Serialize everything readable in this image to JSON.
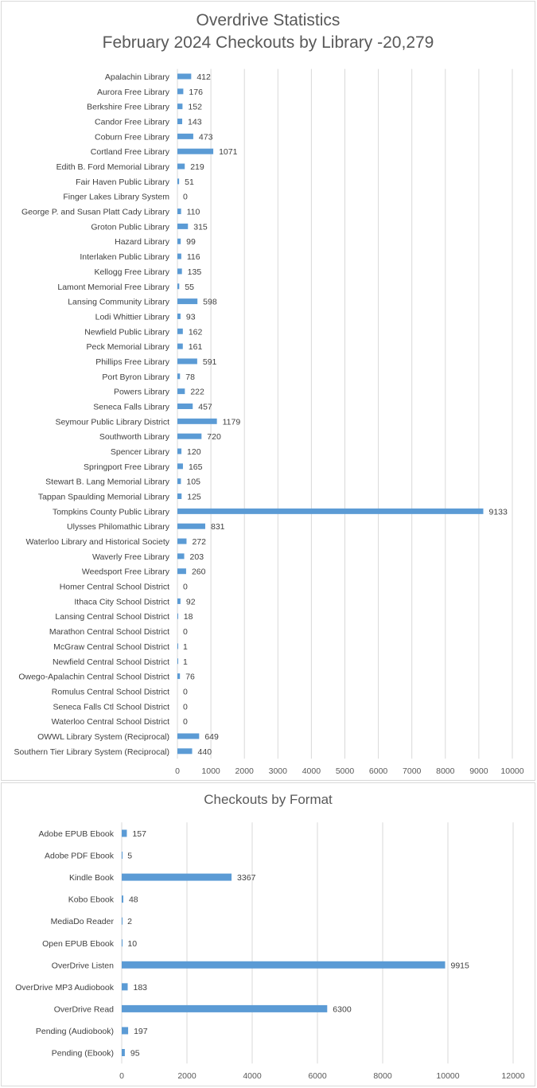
{
  "chart_data": [
    {
      "type": "bar",
      "orientation": "horizontal",
      "title": "Overdrive Statistics",
      "subtitle": "February 2024 Checkouts by Library -20,279",
      "categories": [
        "Apalachin Library",
        "Aurora Free Library",
        "Berkshire Free Library",
        "Candor Free Library",
        "Coburn Free Library",
        "Cortland Free Library",
        "Edith B. Ford Memorial Library",
        "Fair Haven Public Library",
        "Finger Lakes Library System",
        "George P. and Susan Platt Cady Library",
        "Groton Public Library",
        "Hazard Library",
        "Interlaken Public Library",
        "Kellogg Free Library",
        "Lamont Memorial Free Library",
        "Lansing Community Library",
        "Lodi Whittier Library",
        "Newfield Public Library",
        "Peck Memorial Library",
        "Phillips Free Library",
        "Port Byron Library",
        "Powers Library",
        "Seneca Falls Library",
        "Seymour Public Library District",
        "Southworth Library",
        "Spencer Library",
        "Springport Free Library",
        "Stewart B. Lang Memorial Library",
        "Tappan Spaulding Memorial Library",
        "Tompkins County Public Library",
        "Ulysses Philomathic Library",
        "Waterloo Library and Historical Society",
        "Waverly Free Library",
        "Weedsport Free Library",
        "Homer Central School District",
        "Ithaca City School District",
        "Lansing Central School District",
        "Marathon Central School District",
        "McGraw Central School District",
        "Newfield Central School District",
        "Owego-Apalachin Central School District",
        "Romulus Central School District",
        "Seneca Falls Ctl School District",
        "Waterloo Central School District",
        "OWWL Library System (Reciprocal)",
        "Southern Tier Library System (Reciprocal)"
      ],
      "values": [
        412,
        176,
        152,
        143,
        473,
        1071,
        219,
        51,
        0,
        110,
        315,
        99,
        116,
        135,
        55,
        598,
        93,
        162,
        161,
        591,
        78,
        222,
        457,
        1179,
        720,
        120,
        165,
        105,
        125,
        9133,
        831,
        272,
        203,
        260,
        0,
        92,
        18,
        0,
        1,
        1,
        76,
        0,
        0,
        0,
        649,
        440
      ],
      "xlim": [
        0,
        10000
      ],
      "xticks": [
        0,
        1000,
        2000,
        3000,
        4000,
        5000,
        6000,
        7000,
        8000,
        9000,
        10000
      ],
      "grid": true,
      "data_labels": true,
      "bar_color": "#5b9bd5"
    },
    {
      "type": "bar",
      "orientation": "horizontal",
      "title": "Checkouts by Format",
      "categories": [
        "Adobe EPUB Ebook",
        "Adobe PDF Ebook",
        "Kindle Book",
        "Kobo Ebook",
        "MediaDo Reader",
        "Open EPUB Ebook",
        "OverDrive Listen",
        "OverDrive MP3 Audiobook",
        "OverDrive Read",
        "Pending (Audiobook)",
        "Pending (Ebook)"
      ],
      "values": [
        157,
        5,
        3367,
        48,
        2,
        10,
        9915,
        183,
        6300,
        197,
        95
      ],
      "xlim": [
        0,
        12000
      ],
      "xticks": [
        0,
        2000,
        4000,
        6000,
        8000,
        10000,
        12000
      ],
      "grid": true,
      "data_labels": true,
      "bar_color": "#5b9bd5"
    }
  ]
}
